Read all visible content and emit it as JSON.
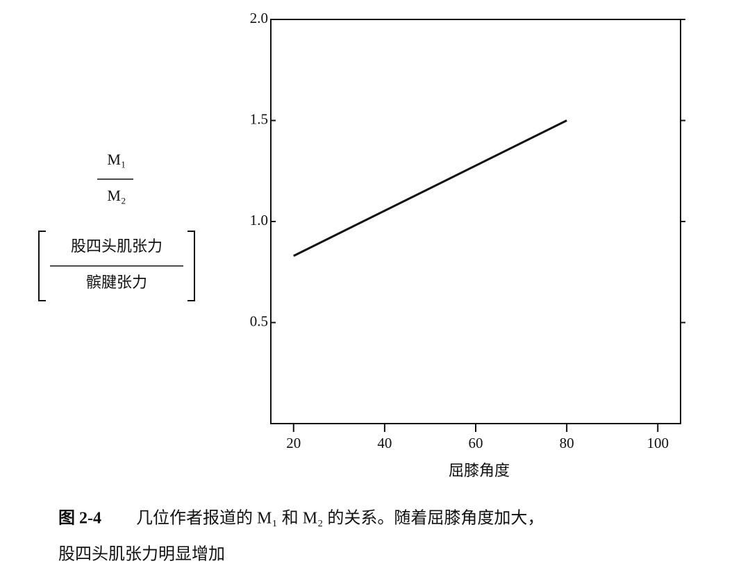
{
  "chart_data": {
    "type": "line",
    "x_label": "屈膝角度",
    "y_label": {
      "numerator": "M₁",
      "denominator": "M₂",
      "note_numerator": "股四头肌张力",
      "note_denominator": "髌腱张力"
    },
    "x": [
      20,
      80
    ],
    "series": [
      {
        "color": "#111111",
        "values": [
          0.83,
          1.5
        ]
      }
    ],
    "xlim": [
      15,
      105
    ],
    "xticks": [
      20,
      40,
      60,
      80,
      100
    ],
    "ylim": [
      0,
      2
    ],
    "yticks": [
      0.5,
      {
        "value": 1,
        "label": "1.0"
      },
      1.5,
      {
        "value": 2,
        "label": "2.0"
      }
    ],
    "grid": false,
    "caption": {
      "figure_label": "图 2-4",
      "lines": [
        "几位作者报道的 M₁ 和 M₂ 的关系。随着屈膝角度加大，",
        "股四头肌张力明显增加"
      ]
    }
  }
}
